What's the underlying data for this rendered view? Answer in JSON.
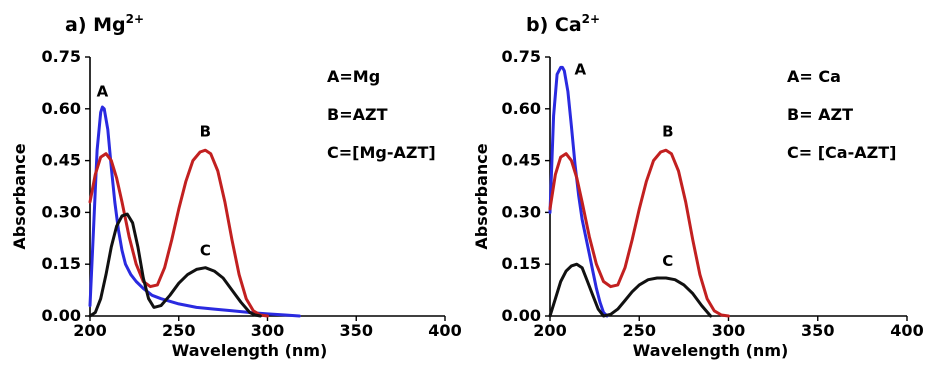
{
  "chart_data": [
    {
      "type": "line",
      "title": "a) Mg",
      "title_superscript": "2+",
      "xlabel": "Wavelength (nm)",
      "ylabel": "Absorbance",
      "xlim": [
        200,
        400
      ],
      "ylim": [
        0,
        0.75
      ],
      "xticks": [
        200,
        250,
        300,
        350,
        400
      ],
      "yticks": [
        "0.00",
        "0.15",
        "0.30",
        "0.45",
        "0.60",
        "0.75"
      ],
      "grid": false,
      "legend_text": [
        "A=Mg",
        "B=AZT",
        "C=[Mg-AZT]"
      ],
      "series": [
        {
          "name": "A",
          "color": "#2a2ae0",
          "x": [
            200,
            202,
            204,
            206,
            207,
            208,
            210,
            212,
            214,
            216,
            218,
            220,
            223,
            226,
            230,
            235,
            240,
            250,
            260,
            270,
            280,
            290,
            300,
            310,
            318
          ],
          "y": [
            0.03,
            0.25,
            0.48,
            0.59,
            0.605,
            0.6,
            0.54,
            0.43,
            0.33,
            0.25,
            0.19,
            0.15,
            0.12,
            0.1,
            0.08,
            0.06,
            0.05,
            0.035,
            0.025,
            0.02,
            0.015,
            0.01,
            0.006,
            0.003,
            0.0
          ]
        },
        {
          "name": "B",
          "color": "#c22020",
          "x": [
            200,
            203,
            206,
            209,
            212,
            215,
            218,
            222,
            226,
            230,
            234,
            238,
            242,
            246,
            250,
            254,
            258,
            262,
            265,
            268,
            272,
            276,
            280,
            284,
            288,
            292,
            296,
            300
          ],
          "y": [
            0.33,
            0.41,
            0.46,
            0.47,
            0.45,
            0.4,
            0.33,
            0.23,
            0.15,
            0.1,
            0.085,
            0.09,
            0.14,
            0.22,
            0.31,
            0.39,
            0.45,
            0.475,
            0.48,
            0.47,
            0.42,
            0.33,
            0.22,
            0.12,
            0.05,
            0.015,
            0.003,
            0.0
          ]
        },
        {
          "name": "C",
          "color": "#111111",
          "x": [
            200,
            203,
            206,
            209,
            212,
            215,
            218,
            221,
            224,
            227,
            230,
            233,
            236,
            240,
            245,
            250,
            255,
            260,
            265,
            270,
            275,
            280,
            285,
            290,
            293,
            296
          ],
          "y": [
            0.0,
            0.01,
            0.05,
            0.12,
            0.2,
            0.26,
            0.29,
            0.295,
            0.27,
            0.2,
            0.11,
            0.05,
            0.025,
            0.03,
            0.06,
            0.095,
            0.12,
            0.135,
            0.14,
            0.13,
            0.11,
            0.075,
            0.04,
            0.01,
            0.003,
            0.0
          ]
        }
      ],
      "curve_labels": [
        {
          "text": "A",
          "x": 207,
          "y": 0.635
        },
        {
          "text": "B",
          "x": 265,
          "y": 0.52
        },
        {
          "text": "C",
          "x": 265,
          "y": 0.175
        }
      ]
    },
    {
      "type": "line",
      "title": "b) Ca",
      "title_superscript": "2+",
      "xlabel": "Wavelength (nm)",
      "ylabel": "Absorbance",
      "xlim": [
        200,
        400
      ],
      "ylim": [
        0,
        0.75
      ],
      "xticks": [
        200,
        250,
        300,
        350,
        400
      ],
      "yticks": [
        "0.00",
        "0.15",
        "0.30",
        "0.45",
        "0.60",
        "0.75"
      ],
      "grid": false,
      "legend_text": [
        "A= Ca",
        "B= AZT",
        "C= [Ca-AZT]"
      ],
      "series": [
        {
          "name": "A",
          "color": "#2a2ae0",
          "x": [
            200,
            202,
            204,
            206,
            207,
            208,
            210,
            212,
            214,
            216,
            218,
            220,
            222,
            224,
            226,
            228,
            230,
            232
          ],
          "y": [
            0.3,
            0.58,
            0.7,
            0.72,
            0.72,
            0.71,
            0.65,
            0.55,
            0.44,
            0.35,
            0.28,
            0.23,
            0.18,
            0.13,
            0.08,
            0.04,
            0.01,
            0.0
          ]
        },
        {
          "name": "B",
          "color": "#c22020",
          "x": [
            200,
            203,
            206,
            209,
            212,
            215,
            218,
            222,
            226,
            230,
            234,
            238,
            242,
            246,
            250,
            254,
            258,
            262,
            265,
            268,
            272,
            276,
            280,
            284,
            288,
            292,
            296,
            300
          ],
          "y": [
            0.31,
            0.41,
            0.46,
            0.47,
            0.45,
            0.4,
            0.33,
            0.23,
            0.15,
            0.1,
            0.085,
            0.09,
            0.14,
            0.22,
            0.31,
            0.39,
            0.45,
            0.475,
            0.48,
            0.47,
            0.42,
            0.33,
            0.22,
            0.12,
            0.05,
            0.015,
            0.003,
            0.0
          ]
        },
        {
          "name": "C",
          "color": "#111111",
          "x": [
            200,
            203,
            206,
            209,
            212,
            215,
            218,
            221,
            224,
            227,
            230,
            234,
            238,
            242,
            246,
            250,
            255,
            260,
            265,
            270,
            275,
            280,
            285,
            290
          ],
          "y": [
            0.0,
            0.05,
            0.1,
            0.13,
            0.145,
            0.15,
            0.14,
            0.1,
            0.06,
            0.02,
            0.0,
            0.005,
            0.02,
            0.045,
            0.07,
            0.09,
            0.105,
            0.11,
            0.11,
            0.105,
            0.09,
            0.065,
            0.03,
            0.0
          ]
        }
      ],
      "curve_labels": [
        {
          "text": "A",
          "x": 217,
          "y": 0.7
        },
        {
          "text": "B",
          "x": 266,
          "y": 0.52
        },
        {
          "text": "C",
          "x": 266,
          "y": 0.145
        }
      ]
    }
  ]
}
